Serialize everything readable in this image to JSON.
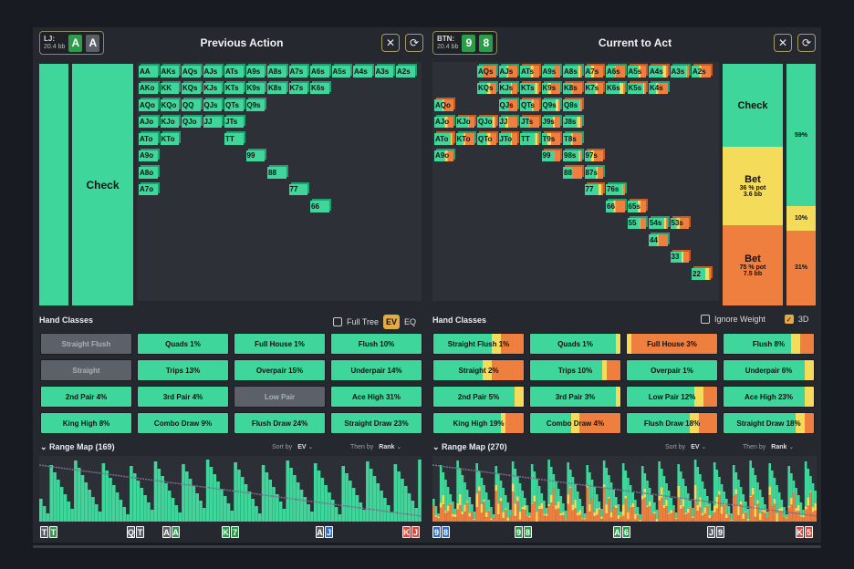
{
  "colors": {
    "check": "#3ed69a",
    "bet_small": "#f4db5a",
    "bet_large": "#ef7f3e",
    "card_green": "#2d9c4a",
    "card_gray": "#5b6068",
    "card_blue": "#2e6fd1",
    "card_red": "#d84a3e"
  },
  "left": {
    "player": {
      "pos": "LJ:",
      "stack": "20.4 bb",
      "cards": [
        {
          "rank": "A",
          "suit": "green"
        },
        {
          "rank": "A",
          "suit": "gray"
        }
      ]
    },
    "title": "Previous Action",
    "bar_label": "Check",
    "grid": [
      {
        "c": "AA",
        "r": 0,
        "x": 0
      },
      {
        "c": "AKs",
        "r": 0,
        "x": 1
      },
      {
        "c": "AQs",
        "r": 0,
        "x": 2
      },
      {
        "c": "AJs",
        "r": 0,
        "x": 3
      },
      {
        "c": "ATs",
        "r": 0,
        "x": 4
      },
      {
        "c": "A9s",
        "r": 0,
        "x": 5
      },
      {
        "c": "A8s",
        "r": 0,
        "x": 6
      },
      {
        "c": "A7s",
        "r": 0,
        "x": 7
      },
      {
        "c": "A6s",
        "r": 0,
        "x": 8
      },
      {
        "c": "A5s",
        "r": 0,
        "x": 9
      },
      {
        "c": "A4s",
        "r": 0,
        "x": 10
      },
      {
        "c": "A3s",
        "r": 0,
        "x": 11
      },
      {
        "c": "A2s",
        "r": 0,
        "x": 12
      },
      {
        "c": "AKo",
        "r": 1,
        "x": 0
      },
      {
        "c": "KK",
        "r": 1,
        "x": 1
      },
      {
        "c": "KQs",
        "r": 1,
        "x": 2
      },
      {
        "c": "KJs",
        "r": 1,
        "x": 3
      },
      {
        "c": "KTs",
        "r": 1,
        "x": 4
      },
      {
        "c": "K9s",
        "r": 1,
        "x": 5
      },
      {
        "c": "K8s",
        "r": 1,
        "x": 6
      },
      {
        "c": "K7s",
        "r": 1,
        "x": 7
      },
      {
        "c": "K6s",
        "r": 1,
        "x": 8
      },
      {
        "c": "AQo",
        "r": 2,
        "x": 0
      },
      {
        "c": "KQo",
        "r": 2,
        "x": 1
      },
      {
        "c": "QQ",
        "r": 2,
        "x": 2
      },
      {
        "c": "QJs",
        "r": 2,
        "x": 3
      },
      {
        "c": "QTs",
        "r": 2,
        "x": 4
      },
      {
        "c": "Q9s",
        "r": 2,
        "x": 5
      },
      {
        "c": "AJo",
        "r": 3,
        "x": 0
      },
      {
        "c": "KJo",
        "r": 3,
        "x": 1
      },
      {
        "c": "QJo",
        "r": 3,
        "x": 2
      },
      {
        "c": "JJ",
        "r": 3,
        "x": 3
      },
      {
        "c": "JTs",
        "r": 3,
        "x": 4
      },
      {
        "c": "ATo",
        "r": 4,
        "x": 0
      },
      {
        "c": "KTo",
        "r": 4,
        "x": 1
      },
      {
        "c": "TT",
        "r": 4,
        "x": 4
      },
      {
        "c": "A9o",
        "r": 5,
        "x": 0
      },
      {
        "c": "99",
        "r": 5,
        "x": 5
      },
      {
        "c": "A8o",
        "r": 6,
        "x": 0
      },
      {
        "c": "88",
        "r": 6,
        "x": 6
      },
      {
        "c": "A7o",
        "r": 7,
        "x": 0
      },
      {
        "c": "77",
        "r": 7,
        "x": 7
      },
      {
        "c": "66",
        "r": 8,
        "x": 8
      }
    ],
    "hand_classes_title": "Hand Classes",
    "opts": {
      "full_tree": "Full Tree",
      "ev": "EV",
      "eq": "EQ"
    },
    "hand_classes": [
      {
        "name": "Straight Flush",
        "pct": "",
        "dis": true
      },
      {
        "name": "Quads",
        "pct": "1%"
      },
      {
        "name": "Full House",
        "pct": "1%"
      },
      {
        "name": "Flush",
        "pct": "10%"
      },
      {
        "name": "Straight",
        "pct": "",
        "dis": true
      },
      {
        "name": "Trips",
        "pct": "13%"
      },
      {
        "name": "Overpair",
        "pct": "15%"
      },
      {
        "name": "Underpair",
        "pct": "14%"
      },
      {
        "name": "2nd Pair",
        "pct": "4%"
      },
      {
        "name": "3rd Pair",
        "pct": "4%"
      },
      {
        "name": "Low Pair",
        "pct": "",
        "dis": true
      },
      {
        "name": "Ace High",
        "pct": "31%"
      },
      {
        "name": "King High",
        "pct": "8%"
      },
      {
        "name": "Combo Draw",
        "pct": "9%"
      },
      {
        "name": "Flush Draw",
        "pct": "24%"
      },
      {
        "name": "Straight Draw",
        "pct": "23%"
      }
    ],
    "range_map": {
      "title": "Range Map (169)",
      "sort_by": "Sort by",
      "sort_val": "EV",
      "then_by": "Then by",
      "then_val": "Rank"
    },
    "rm_cards": [
      {
        "cards": [
          {
            "r": "T",
            "s": "gray"
          },
          {
            "r": "T",
            "s": "green"
          }
        ]
      },
      {
        "cards": [
          {
            "r": "Q",
            "s": "gray"
          },
          {
            "r": "T",
            "s": "gray"
          }
        ]
      },
      {
        "cards": [
          {
            "r": "A",
            "s": "gray"
          },
          {
            "r": "A",
            "s": "green"
          }
        ]
      },
      {
        "cards": [
          {
            "r": "K",
            "s": "green"
          },
          {
            "r": "7",
            "s": "green"
          }
        ]
      },
      {
        "cards": [
          {
            "r": "A",
            "s": "gray"
          },
          {
            "r": "J",
            "s": "blue"
          }
        ]
      },
      {
        "cards": [
          {
            "r": "K",
            "s": "red"
          },
          {
            "r": "J",
            "s": "red"
          }
        ]
      }
    ]
  },
  "right": {
    "player": {
      "pos": "BTN:",
      "stack": "20.4 bb",
      "cards": [
        {
          "rank": "9",
          "suit": "green"
        },
        {
          "rank": "8",
          "suit": "green"
        }
      ]
    },
    "title": "Current to Act",
    "actions": [
      {
        "label": "Check",
        "sub": "",
        "bb": ""
      },
      {
        "label": "Bet",
        "sub": "36 % pot",
        "bb": "3.6 bb"
      },
      {
        "label": "Bet",
        "sub": "75 % pot",
        "bb": "7.5 bb"
      }
    ],
    "freq": [
      {
        "pct": "59%",
        "value": 0.59
      },
      {
        "pct": "10%",
        "value": 0.1
      },
      {
        "pct": "31%",
        "value": 0.31
      }
    ],
    "grid": [
      {
        "c": "AQs",
        "r": 0,
        "x": 2
      },
      {
        "c": "AJs",
        "r": 0,
        "x": 3
      },
      {
        "c": "ATs",
        "r": 0,
        "x": 4
      },
      {
        "c": "A9s",
        "r": 0,
        "x": 5
      },
      {
        "c": "A8s",
        "r": 0,
        "x": 6
      },
      {
        "c": "A7s",
        "r": 0,
        "x": 7
      },
      {
        "c": "A6s",
        "r": 0,
        "x": 8
      },
      {
        "c": "A5s",
        "r": 0,
        "x": 9
      },
      {
        "c": "A4s",
        "r": 0,
        "x": 10
      },
      {
        "c": "A3s",
        "r": 0,
        "x": 11
      },
      {
        "c": "A2s",
        "r": 0,
        "x": 12
      },
      {
        "c": "KQs",
        "r": 1,
        "x": 2
      },
      {
        "c": "KJs",
        "r": 1,
        "x": 3
      },
      {
        "c": "KTs",
        "r": 1,
        "x": 4
      },
      {
        "c": "K9s",
        "r": 1,
        "x": 5
      },
      {
        "c": "K8s",
        "r": 1,
        "x": 6
      },
      {
        "c": "K7s",
        "r": 1,
        "x": 7
      },
      {
        "c": "K6s",
        "r": 1,
        "x": 8
      },
      {
        "c": "K5s",
        "r": 1,
        "x": 9
      },
      {
        "c": "K4s",
        "r": 1,
        "x": 10
      },
      {
        "c": "QJs",
        "r": 2,
        "x": 3
      },
      {
        "c": "QTs",
        "r": 2,
        "x": 4
      },
      {
        "c": "Q9s",
        "r": 2,
        "x": 5
      },
      {
        "c": "Q8s",
        "r": 2,
        "x": 6
      },
      {
        "c": "AQo",
        "r": 2,
        "x": 0
      },
      {
        "c": "AJo",
        "r": 3,
        "x": 0
      },
      {
        "c": "KJo",
        "r": 3,
        "x": 1
      },
      {
        "c": "QJo",
        "r": 3,
        "x": 2
      },
      {
        "c": "JJ",
        "r": 3,
        "x": 3
      },
      {
        "c": "JTs",
        "r": 3,
        "x": 4
      },
      {
        "c": "J9s",
        "r": 3,
        "x": 5
      },
      {
        "c": "J8s",
        "r": 3,
        "x": 6
      },
      {
        "c": "ATo",
        "r": 4,
        "x": 0
      },
      {
        "c": "KTo",
        "r": 4,
        "x": 1
      },
      {
        "c": "QTo",
        "r": 4,
        "x": 2
      },
      {
        "c": "JTo",
        "r": 4,
        "x": 3
      },
      {
        "c": "TT",
        "r": 4,
        "x": 4
      },
      {
        "c": "T9s",
        "r": 4,
        "x": 5
      },
      {
        "c": "T8s",
        "r": 4,
        "x": 6
      },
      {
        "c": "A9o",
        "r": 5,
        "x": 0
      },
      {
        "c": "99",
        "r": 5,
        "x": 5
      },
      {
        "c": "98s",
        "r": 5,
        "x": 6
      },
      {
        "c": "97s",
        "r": 5,
        "x": 7
      },
      {
        "c": "88",
        "r": 6,
        "x": 6
      },
      {
        "c": "87s",
        "r": 6,
        "x": 7
      },
      {
        "c": "77",
        "r": 7,
        "x": 7
      },
      {
        "c": "76s",
        "r": 7,
        "x": 8
      },
      {
        "c": "66",
        "r": 8,
        "x": 8
      },
      {
        "c": "65s",
        "r": 8,
        "x": 9
      },
      {
        "c": "55",
        "r": 9,
        "x": 9
      },
      {
        "c": "54s",
        "r": 9,
        "x": 10
      },
      {
        "c": "53s",
        "r": 9,
        "x": 11
      },
      {
        "c": "44",
        "r": 10,
        "x": 10
      },
      {
        "c": "33",
        "r": 11,
        "x": 11
      },
      {
        "c": "22",
        "r": 12,
        "x": 12
      }
    ],
    "hand_classes_title": "Hand Classes",
    "opts": {
      "ignore_weight": "Ignore Weight",
      "three_d": "3D"
    },
    "hand_classes": [
      {
        "name": "Straight Flush",
        "pct": "1%",
        "mix": [
          0.65,
          0.1,
          0.25
        ]
      },
      {
        "name": "Quads",
        "pct": "1%",
        "mix": [
          0.95,
          0.05,
          0
        ]
      },
      {
        "name": "Full House",
        "pct": "3%",
        "mix": [
          0,
          0.05,
          0.95
        ]
      },
      {
        "name": "Flush",
        "pct": "8%",
        "mix": [
          0.75,
          0.1,
          0.15
        ]
      },
      {
        "name": "Straight",
        "pct": "2%",
        "mix": [
          0.55,
          0.1,
          0.35
        ]
      },
      {
        "name": "Trips",
        "pct": "10%",
        "mix": [
          0.8,
          0.05,
          0.15
        ]
      },
      {
        "name": "Overpair",
        "pct": "1%",
        "mix": [
          1,
          0,
          0
        ]
      },
      {
        "name": "Underpair",
        "pct": "6%",
        "mix": [
          0.9,
          0.1,
          0
        ]
      },
      {
        "name": "2nd Pair",
        "pct": "5%",
        "mix": [
          0.9,
          0.1,
          0
        ]
      },
      {
        "name": "3rd Pair",
        "pct": "3%",
        "mix": [
          0.95,
          0.05,
          0
        ]
      },
      {
        "name": "Low Pair",
        "pct": "12%",
        "mix": [
          0.75,
          0.1,
          0.15
        ]
      },
      {
        "name": "Ace High",
        "pct": "23%",
        "mix": [
          0.9,
          0.1,
          0
        ]
      },
      {
        "name": "King High",
        "pct": "19%",
        "mix": [
          0.75,
          0.05,
          0.2
        ]
      },
      {
        "name": "Combo Draw",
        "pct": "4%",
        "mix": [
          0.45,
          0.1,
          0.45
        ]
      },
      {
        "name": "Flush Draw",
        "pct": "18%",
        "mix": [
          0.7,
          0.1,
          0.2
        ]
      },
      {
        "name": "Straight Draw",
        "pct": "18%",
        "mix": [
          0.8,
          0.1,
          0.1
        ]
      }
    ],
    "range_map": {
      "title": "Range Map (270)",
      "sort_by": "Sort by",
      "sort_val": "EV",
      "then_by": "Then by",
      "then_val": "Rank"
    },
    "rm_cards": [
      {
        "cards": [
          {
            "r": "9",
            "s": "blue"
          },
          {
            "r": "8",
            "s": "blue"
          }
        ]
      },
      {
        "cards": [
          {
            "r": "9",
            "s": "green"
          },
          {
            "r": "8",
            "s": "green"
          }
        ]
      },
      {
        "cards": [
          {
            "r": "A",
            "s": "green"
          },
          {
            "r": "6",
            "s": "green"
          }
        ]
      },
      {
        "cards": [
          {
            "r": "J",
            "s": "gray"
          },
          {
            "r": "9",
            "s": "gray"
          }
        ]
      },
      {
        "cards": [
          {
            "r": "K",
            "s": "red"
          },
          {
            "r": "5",
            "s": "red"
          }
        ]
      }
    ]
  }
}
